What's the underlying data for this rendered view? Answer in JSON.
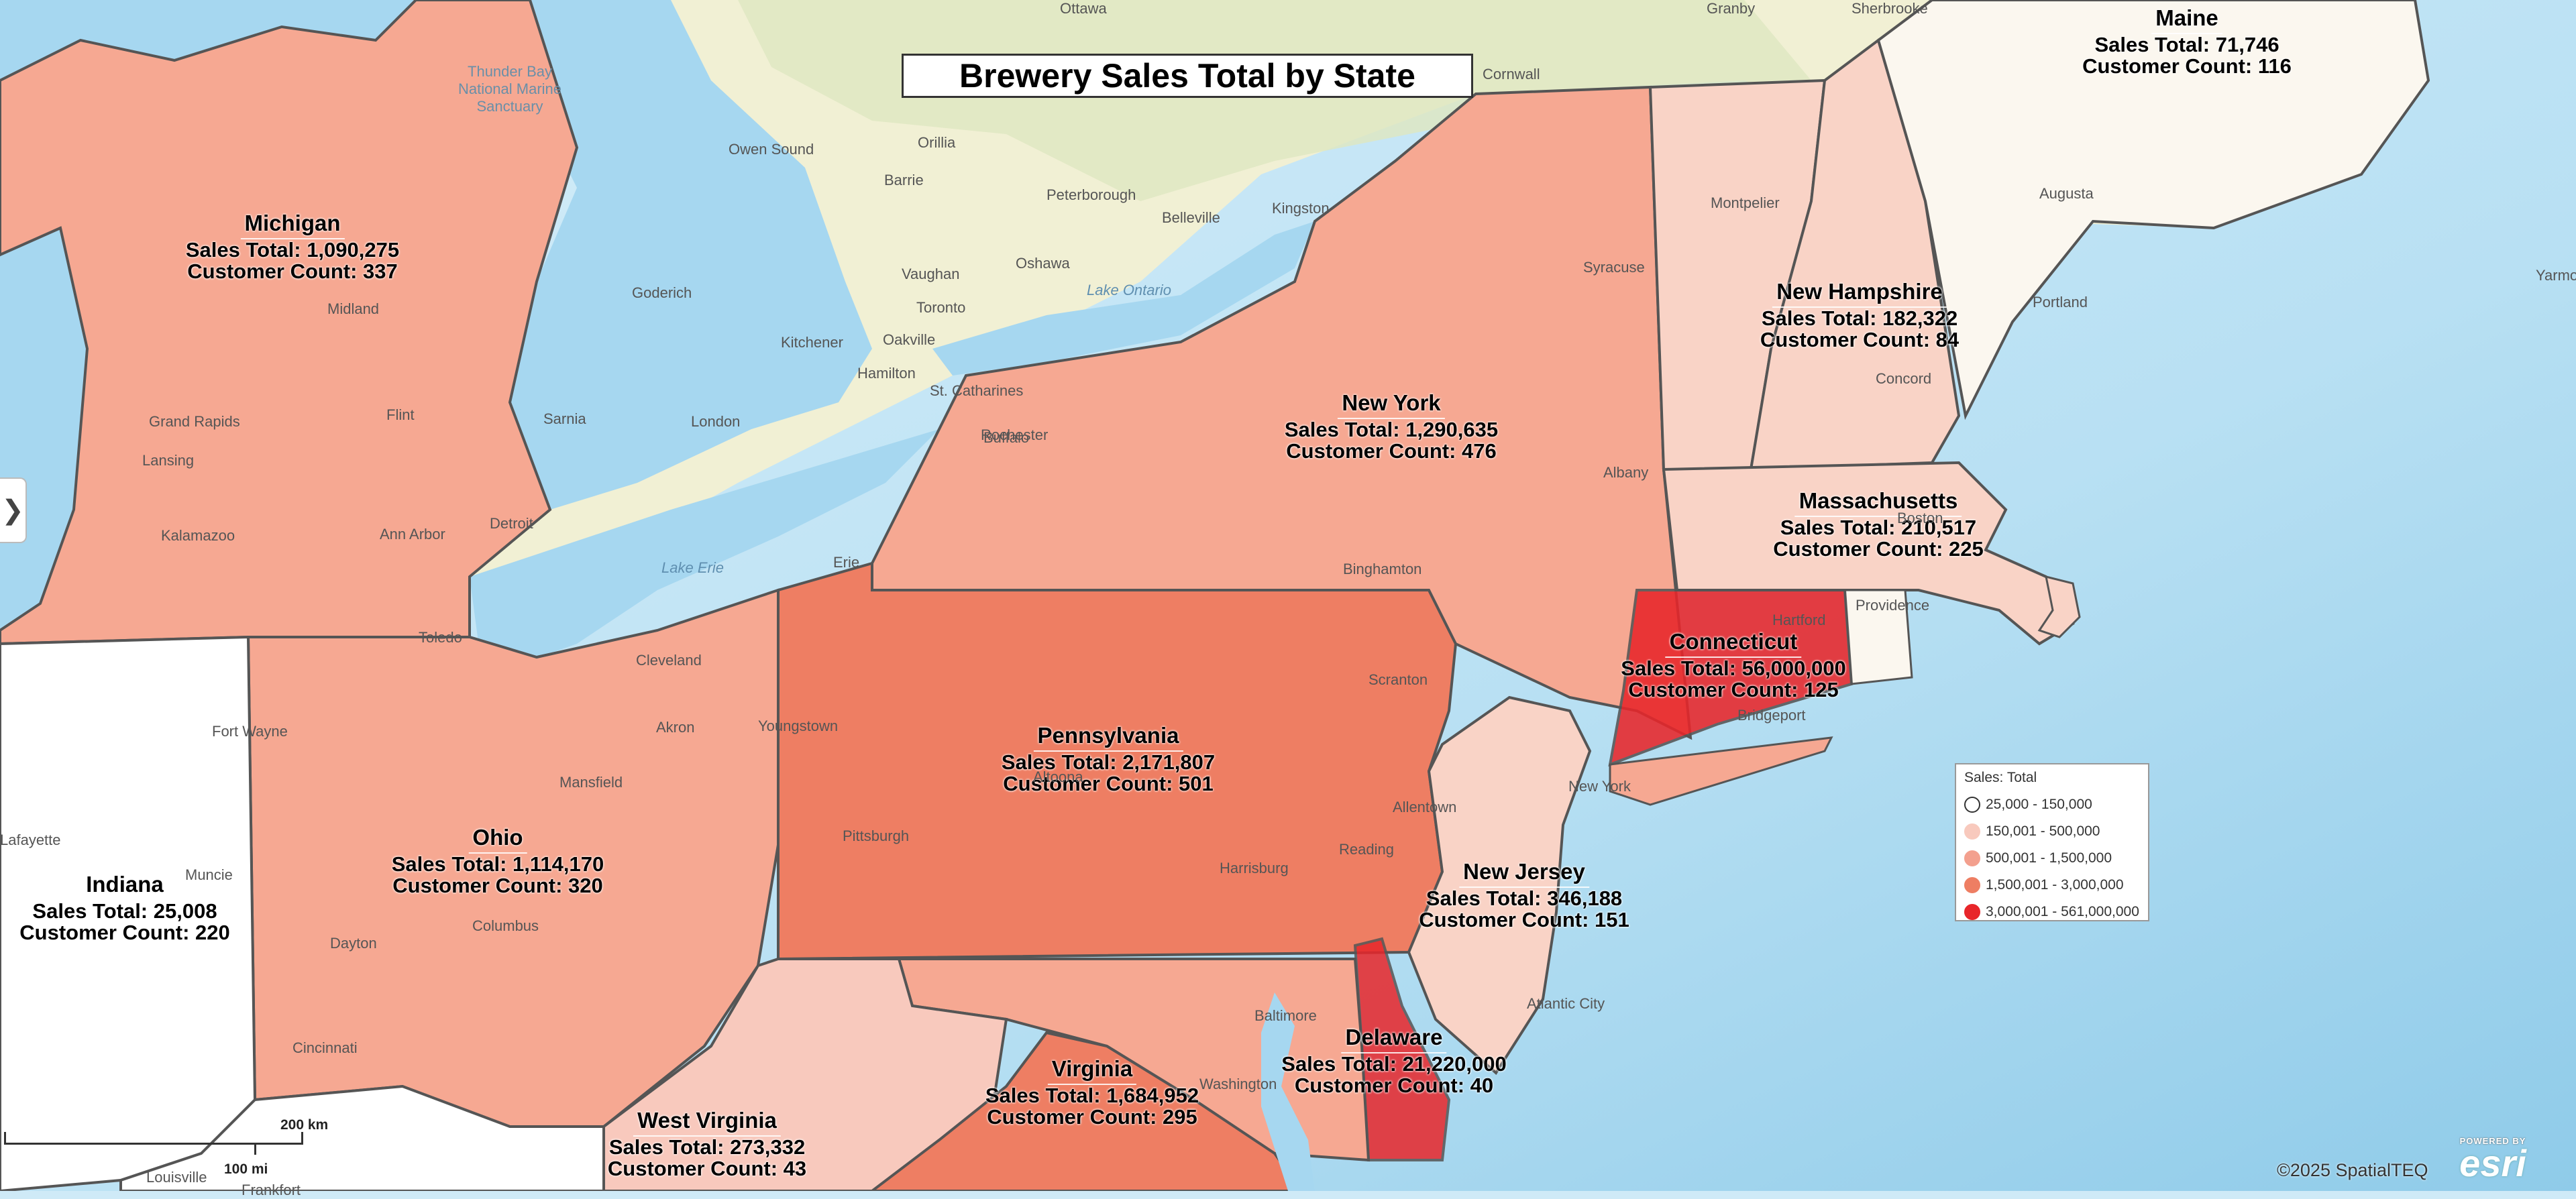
{
  "title": "Brewery Sales Total by State",
  "legend": {
    "title": "Sales: Total",
    "items": [
      {
        "label": "25,000 - 150,000",
        "color": "#ffffff"
      },
      {
        "label": "150,001 - 500,000",
        "color": "#f8c9bd"
      },
      {
        "label": "500,001 - 1,500,000",
        "color": "#f3a08e"
      },
      {
        "label": "1,500,001 - 3,000,000",
        "color": "#ee7e63"
      },
      {
        "label": "3,000,001 - 561,000,000",
        "color": "#e8262a"
      }
    ]
  },
  "states": [
    {
      "name": "Maine",
      "sales": "Sales Total: 71,746",
      "customers": "Customer Count: 116"
    },
    {
      "name": "Michigan",
      "sales": "Sales Total: 1,090,275",
      "customers": "Customer Count: 337"
    },
    {
      "name": "New Hampshire",
      "sales": "Sales Total: 182,322",
      "customers": "Customer Count: 84"
    },
    {
      "name": "New York",
      "sales": "Sales Total: 1,290,635",
      "customers": "Customer Count: 476"
    },
    {
      "name": "Massachusetts",
      "sales": "Sales Total: 210,517",
      "customers": "Customer Count: 225"
    },
    {
      "name": "Connecticut",
      "sales": "Sales Total: 56,000,000",
      "customers": "Customer Count: 125"
    },
    {
      "name": "Pennsylvania",
      "sales": "Sales Total: 2,171,807",
      "customers": "Customer Count: 501"
    },
    {
      "name": "Ohio",
      "sales": "Sales Total: 1,114,170",
      "customers": "Customer Count: 320"
    },
    {
      "name": "Indiana",
      "sales": "Sales Total: 25,008",
      "customers": "Customer Count: 220"
    },
    {
      "name": "New Jersey",
      "sales": "Sales Total: 346,188",
      "customers": "Customer Count: 151"
    },
    {
      "name": "Delaware",
      "sales": "Sales Total: 21,220,000",
      "customers": "Customer Count: 40"
    },
    {
      "name": "Virginia",
      "sales": "Sales Total: 1,684,952",
      "customers": "Customer Count: 295"
    },
    {
      "name": "West Virginia",
      "sales": "Sales Total: 273,332",
      "customers": "Customer Count: 43"
    }
  ],
  "places": [
    "Ottawa",
    "Sherbrooke",
    "Granby",
    "Cornwall",
    "Thunder Bay National Marine Sanctuary",
    "Owen Sound",
    "Barrie",
    "Orillia",
    "Peterborough",
    "Belleville",
    "Kingston",
    "Vaughan",
    "Oshawa",
    "Toronto",
    "Goderich",
    "Kitchener",
    "Oakville",
    "Hamilton",
    "St. Catharines",
    "Lake Ontario",
    "Rochester",
    "Buffalo",
    "Sarnia",
    "London",
    "Detroit",
    "Lake Erie",
    "Erie",
    "Toledo",
    "Cleveland",
    "Akron",
    "Youngstown",
    "Pittsburgh",
    "Altoona",
    "Harrisburg",
    "Reading",
    "Allentown",
    "Scranton",
    "Binghamton",
    "Albany",
    "Syracuse",
    "Hartford",
    "Bridgeport",
    "New York",
    "Providence",
    "Boston",
    "Concord",
    "Montpelier",
    "Augusta",
    "Portland",
    "Grand Rapids",
    "Lansing",
    "Flint",
    "Kalamazoo",
    "Ann Arbor",
    "Midland",
    "Fort Wayne",
    "Lafayette",
    "Muncie",
    "Dayton",
    "Columbus",
    "Cincinnati",
    "Mansfield",
    "Baltimore",
    "Washington",
    "Atlantic City",
    "Louisville",
    "Frankfort",
    "Yarmouth"
  ],
  "scale": {
    "km": "200 km",
    "mi": "100 mi"
  },
  "toggle": "❯",
  "copyright": "©2025 SpatialTEQ",
  "esri": {
    "powered": "POWERED BY",
    "word": "esri"
  }
}
